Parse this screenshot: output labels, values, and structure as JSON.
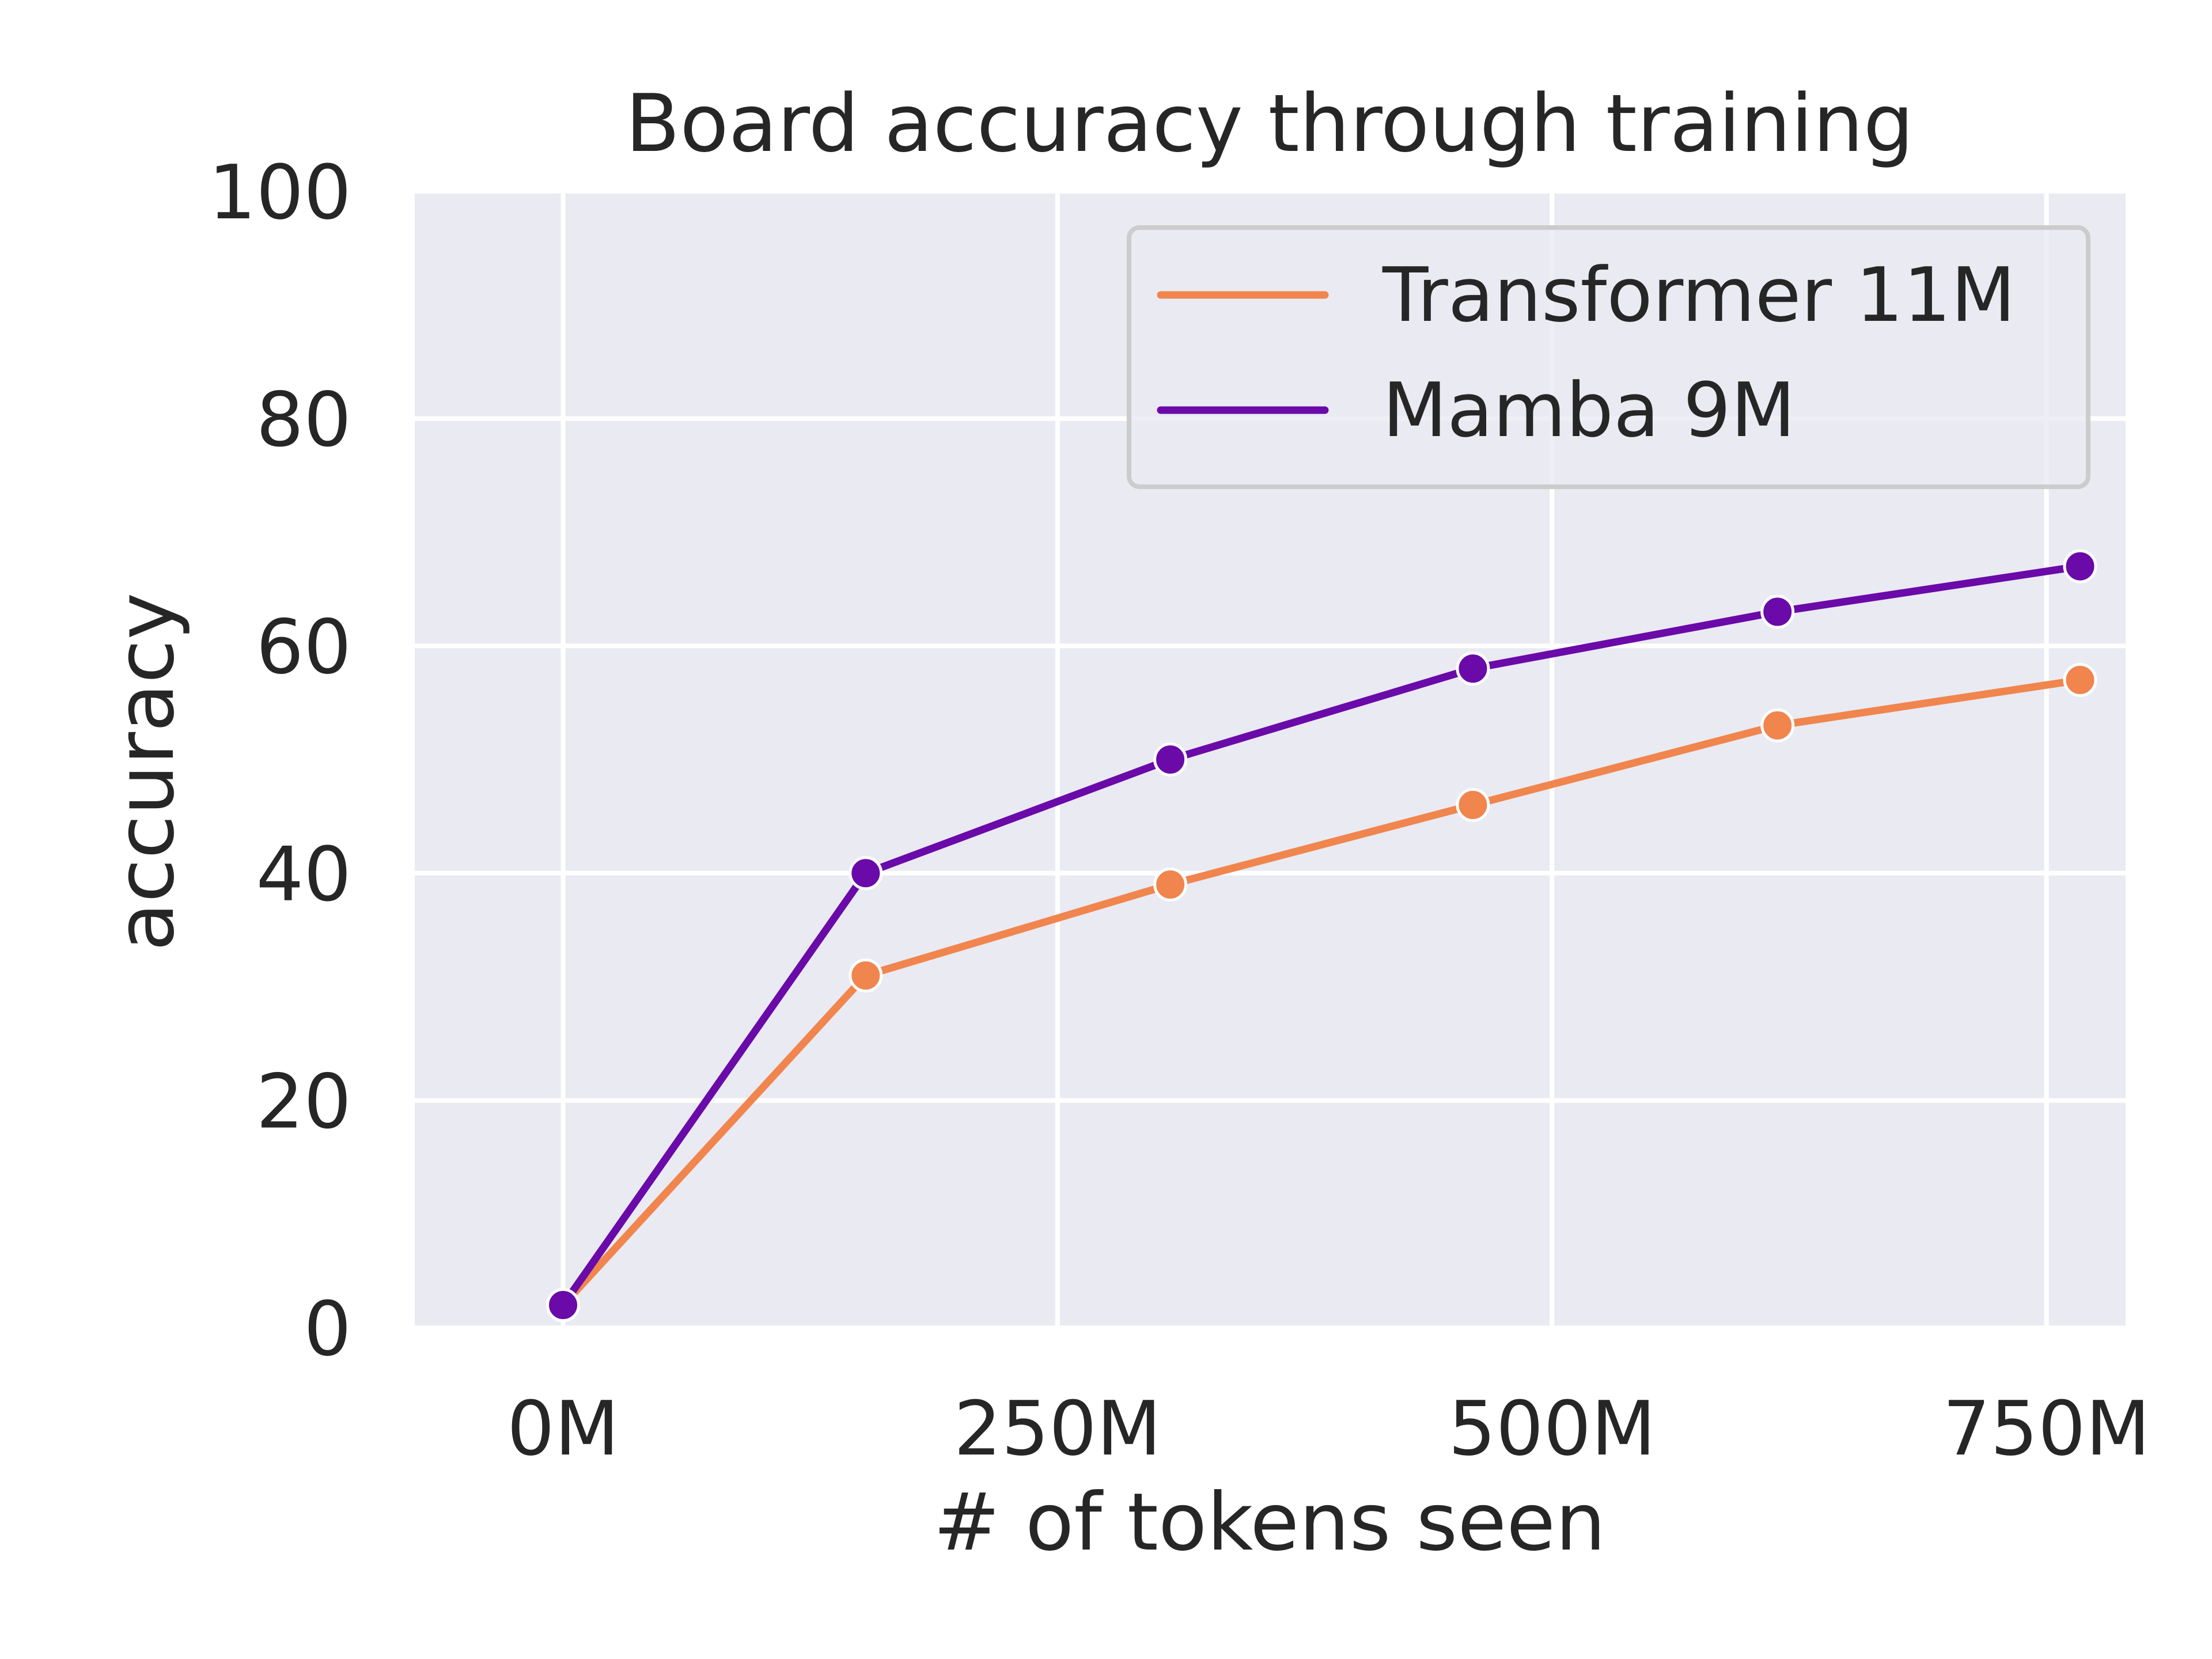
{
  "chart_data": {
    "type": "line",
    "title": "Board accuracy through training",
    "xlabel": "# of tokens seen",
    "ylabel": "accuracy",
    "x_unit": "M tokens",
    "xlim": [
      -75,
      790
    ],
    "ylim": [
      0,
      100
    ],
    "xticks": [
      0,
      250,
      500,
      750
    ],
    "xtick_labels": [
      "0M",
      "250M",
      "500M",
      "750M"
    ],
    "yticks": [
      0,
      20,
      40,
      60,
      80,
      100
    ],
    "ytick_labels": [
      "0",
      "20",
      "40",
      "60",
      "80",
      "100"
    ],
    "grid": true,
    "legend_position": "top-right",
    "x": [
      0,
      153,
      307,
      460,
      614,
      767
    ],
    "series": [
      {
        "name": "Transformer 11M",
        "color": "#f0854e",
        "values": [
          2,
          31,
          39,
          46,
          53,
          57
        ]
      },
      {
        "name": "Mamba 9M",
        "color": "#6a0aa8",
        "values": [
          2,
          40,
          50,
          58,
          63,
          67
        ]
      }
    ],
    "colors": {
      "plot_background": "#eaeaf2",
      "grid": "#ffffff",
      "text": "#262626"
    }
  }
}
